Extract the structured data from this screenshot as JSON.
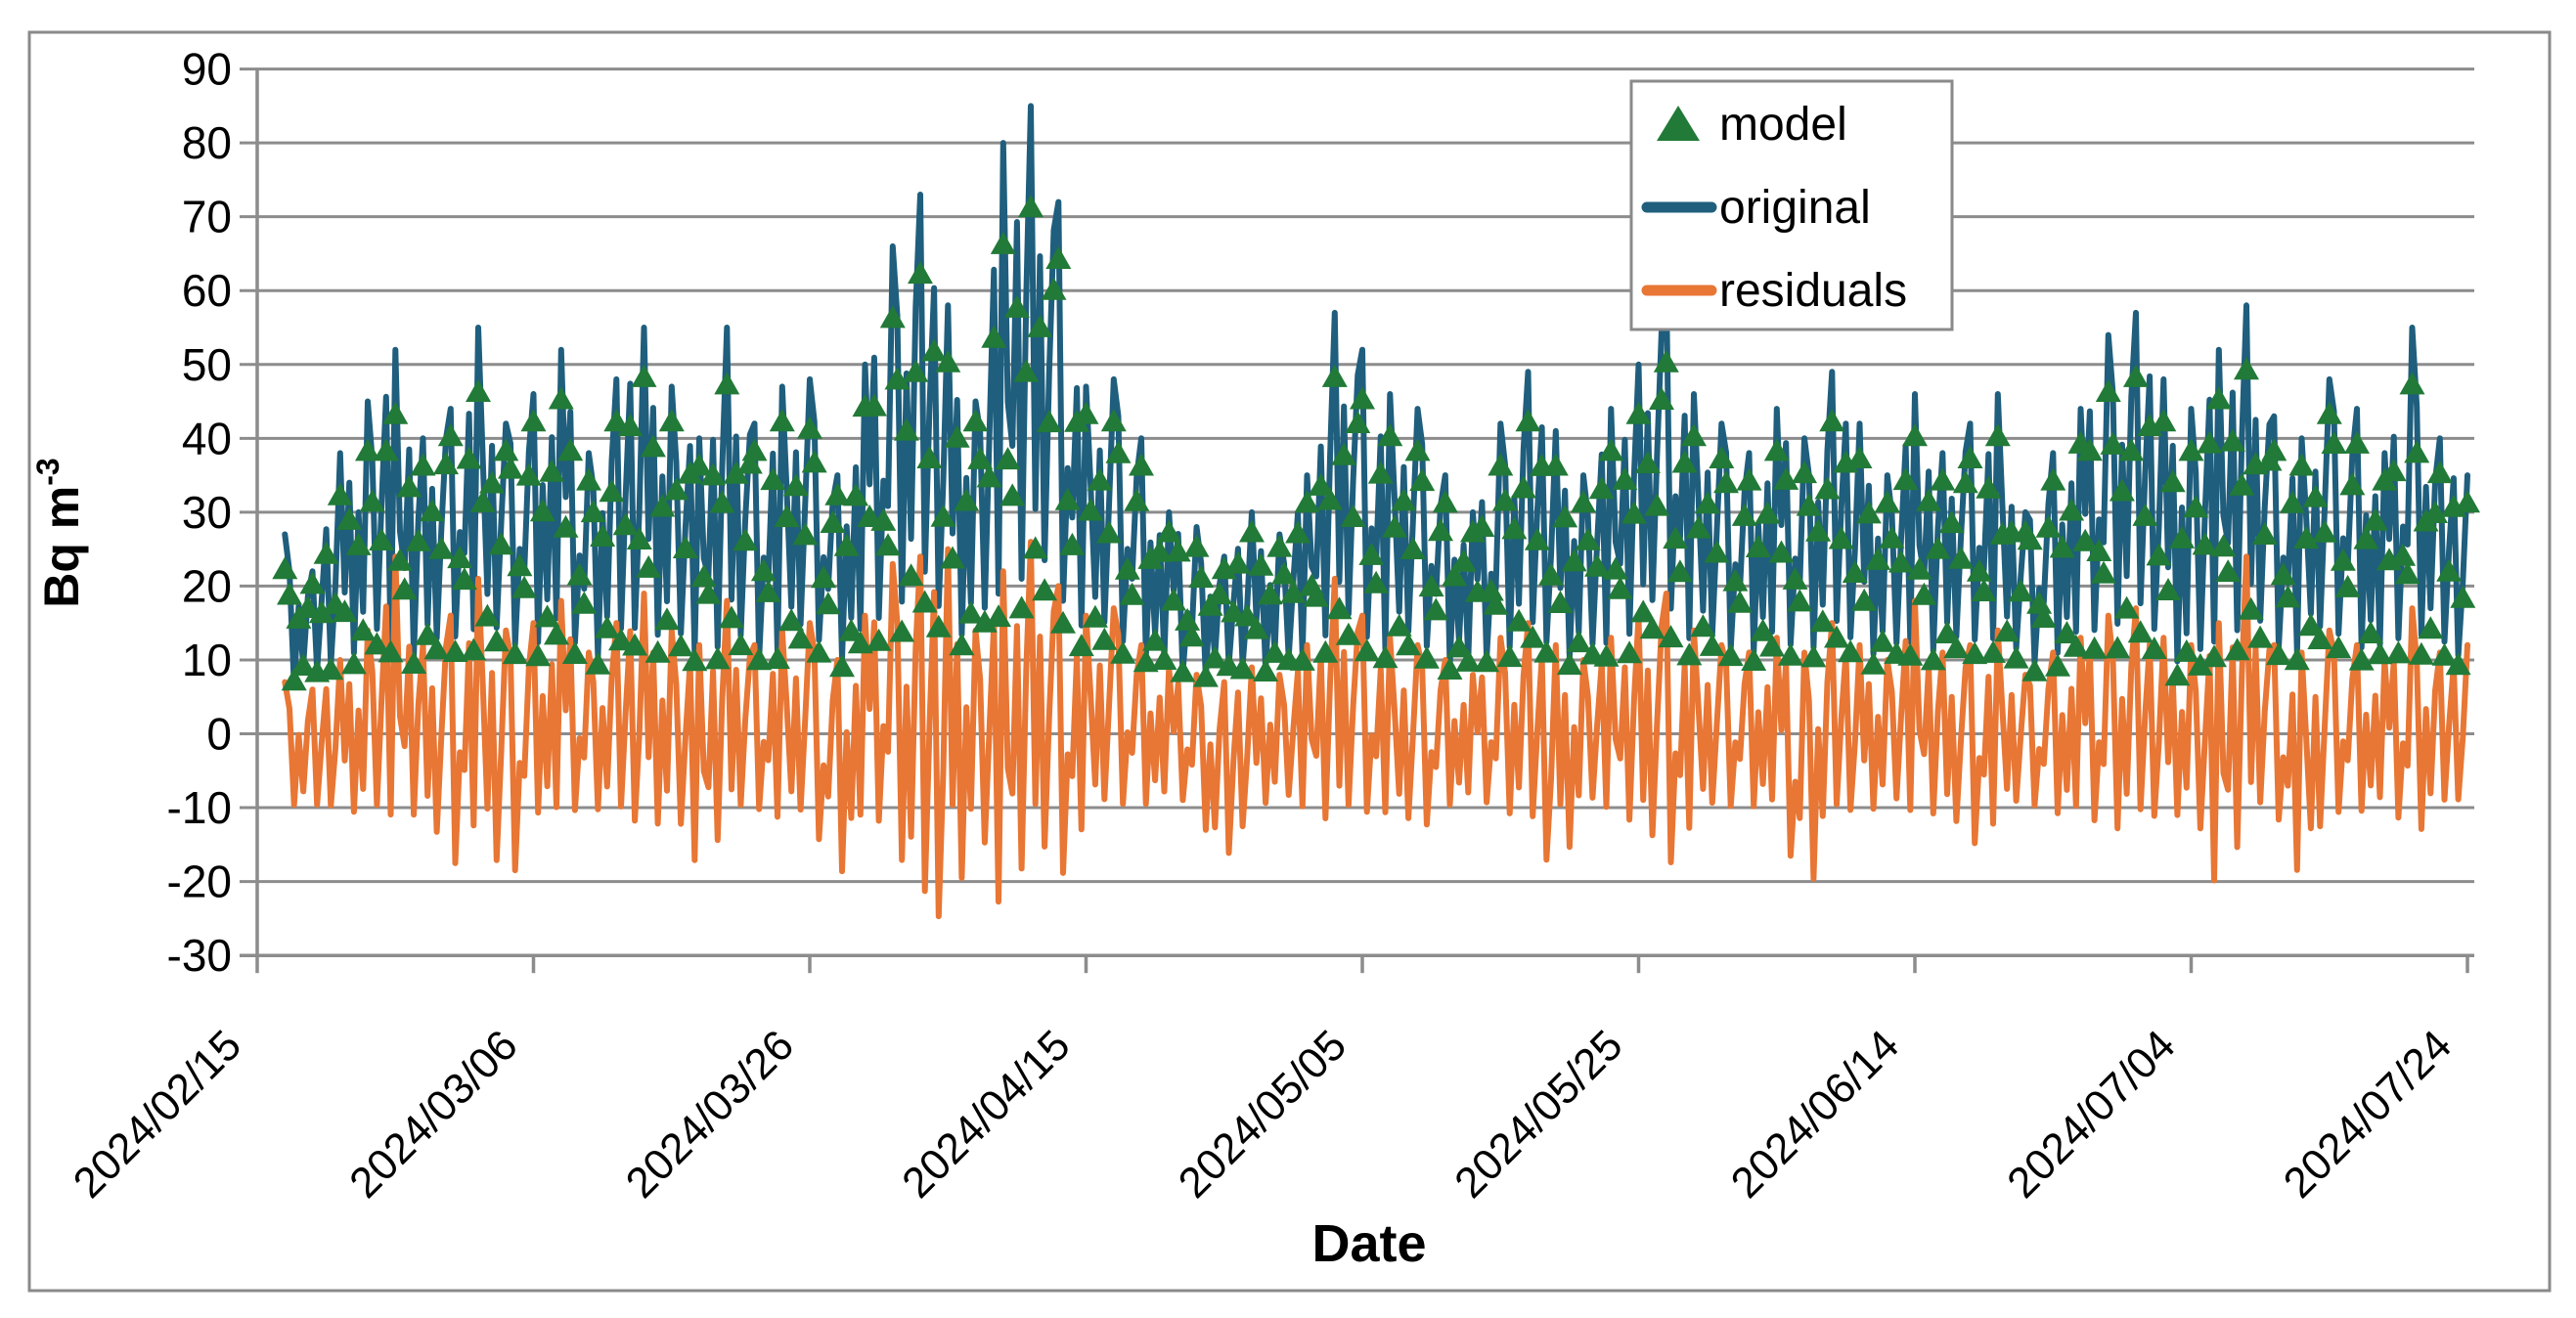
{
  "chart": {
    "title": "",
    "background": "#ffffff",
    "frame_color": "#8a8a8a",
    "gridline_color": "#8c8c8c",
    "axis_color": "#8c8c8c",
    "text_color": "#000000",
    "y_axis": {
      "title_main": "Bq m",
      "title_sup": "-3",
      "min": -30,
      "max": 90,
      "tick_step": 10,
      "tick_labels": [
        "90",
        "80",
        "70",
        "60",
        "50",
        "40",
        "30",
        "20",
        "10",
        "0",
        "-10",
        "-20",
        "-30"
      ]
    },
    "x_axis": {
      "title": "Date",
      "tick_labels": [
        "2024/02/15",
        "2024/03/06",
        "2024/03/26",
        "2024/04/15",
        "2024/05/05",
        "2024/05/25",
        "2024/06/14",
        "2024/07/04",
        "2024/07/24"
      ],
      "tick_interval_days": 20
    },
    "legend": {
      "position": "top-right-inside",
      "entries": [
        {
          "label": "model",
          "marker": "triangle",
          "color": "#217a37"
        },
        {
          "label": "original",
          "marker": "line",
          "color": "#1f5e7d"
        },
        {
          "label": "residuals",
          "marker": "line",
          "color": "#e87634"
        }
      ]
    }
  },
  "chart_data": {
    "type": "line",
    "title": "",
    "xlabel": "Date",
    "ylabel": "Bq m-3",
    "ylim": [
      -30,
      90
    ],
    "grid": "horizontal",
    "legend_position": "top-right inside plot",
    "x_tick_labels": [
      "2024/02/15",
      "2024/03/06",
      "2024/03/26",
      "2024/04/15",
      "2024/05/05",
      "2024/05/25",
      "2024/06/14",
      "2024/07/04",
      "2024/07/24"
    ],
    "x_day_of_first_tick": 0,
    "x_days_per_tick": 20,
    "sampling_note": "high-frequency data summarized as 2-day hi/lo envelopes; day 0 = 2024/02/15",
    "day_start": 2,
    "day_step": 2,
    "sub_pattern": [
      0.35,
      0.8,
      0.06,
      0.62,
      0.2,
      0.75,
      0.12,
      0.55,
      0.9,
      0.08,
      0.45
    ],
    "series": [
      {
        "name": "original",
        "style": "line",
        "color": "#1f5e7d",
        "hi": [
          27,
          22,
          38,
          45,
          52,
          40,
          44,
          55,
          42,
          46,
          52,
          38,
          48,
          55,
          47,
          40,
          55,
          42,
          47,
          48,
          35,
          50,
          66,
          73,
          58,
          45,
          80,
          85,
          72,
          47,
          48,
          40,
          30,
          28,
          24,
          30,
          27,
          35,
          57,
          52,
          46,
          44,
          35,
          30,
          42,
          49,
          41,
          35,
          44,
          50,
          61,
          46,
          42,
          38,
          44,
          40,
          49,
          42,
          35,
          46,
          38,
          42,
          46,
          30,
          38,
          44,
          54,
          57,
          48,
          44,
          52,
          58,
          43,
          40,
          48,
          44,
          38,
          55,
          40,
          35
        ],
        "lo": [
          5,
          6,
          8,
          10,
          9,
          8,
          10,
          12,
          9,
          10,
          11,
          8,
          9,
          12,
          10,
          8,
          10,
          7,
          9,
          11,
          8,
          10,
          14,
          16,
          12,
          10,
          15,
          18,
          14,
          12,
          10,
          9,
          7,
          6,
          7,
          8,
          7,
          9,
          12,
          10,
          9,
          10,
          8,
          7,
          9,
          11,
          9,
          8,
          10,
          12,
          14,
          10,
          9,
          9,
          10,
          9,
          11,
          10,
          8,
          10,
          9,
          10,
          11,
          7,
          9,
          10,
          12,
          13,
          10,
          5,
          10,
          12,
          9,
          9,
          11,
          10,
          8,
          12,
          9,
          8
        ]
      },
      {
        "name": "residuals",
        "style": "line",
        "color": "#e87634",
        "hi": [
          7,
          6,
          10,
          14,
          24,
          12,
          16,
          21,
          14,
          15,
          18,
          11,
          15,
          19,
          14,
          12,
          18,
          12,
          14,
          15,
          10,
          16,
          23,
          24,
          25,
          14,
          22,
          26,
          20,
          16,
          17,
          12,
          9,
          8,
          7,
          9,
          8,
          12,
          21,
          16,
          13,
          12,
          10,
          8,
          13,
          15,
          12,
          10,
          13,
          16,
          19,
          14,
          12,
          11,
          13,
          11,
          15,
          12,
          10,
          18,
          11,
          12,
          14,
          8,
          11,
          13,
          16,
          17,
          13,
          12,
          15,
          24,
          12,
          11,
          14,
          12,
          10,
          17,
          11,
          12
        ],
        "lo": [
          -10,
          -12,
          -11,
          -13,
          -14,
          -12,
          -22,
          -13,
          -26,
          -12,
          -14,
          -11,
          -13,
          -15,
          -13,
          -21,
          -14,
          -12,
          -13,
          -14,
          -22,
          -13,
          -16,
          -27,
          -30,
          -14,
          -29,
          -17,
          -24,
          -13,
          -12,
          -11,
          -10,
          -11,
          -21,
          -11,
          -10,
          -12,
          -14,
          -13,
          -12,
          -16,
          -11,
          -10,
          -12,
          -13,
          -23,
          -11,
          -12,
          -14,
          -22,
          -13,
          -12,
          -11,
          -12,
          -26,
          -13,
          -12,
          -11,
          -13,
          -12,
          -18,
          -13,
          -11,
          -12,
          -13,
          -15,
          -14,
          -13,
          -12,
          -25,
          -14,
          -12,
          -22,
          -13,
          -12,
          -11,
          -16,
          -12,
          -10
        ]
      },
      {
        "name": "model",
        "style": "triangle-markers",
        "color": "#217a37",
        "hi": [
          22,
          20,
          32,
          38,
          43,
          36,
          40,
          46,
          38,
          42,
          45,
          34,
          42,
          48,
          42,
          36,
          47,
          38,
          42,
          41,
          32,
          44,
          56,
          62,
          50,
          42,
          66,
          71,
          64,
          43,
          42,
          36,
          27,
          25,
          22,
          27,
          25,
          31,
          48,
          45,
          40,
          38,
          31,
          27,
          36,
          42,
          36,
          31,
          38,
          43,
          50,
          40,
          37,
          34,
          38,
          35,
          42,
          37,
          31,
          40,
          34,
          37,
          40,
          27,
          34,
          39,
          46,
          48,
          42,
          38,
          45,
          49,
          38,
          36,
          43,
          39,
          34,
          47,
          35,
          31
        ],
        "lo": [
          6,
          6,
          7,
          8,
          8,
          7,
          8,
          9,
          8,
          8,
          9,
          7,
          8,
          9,
          8,
          7,
          8,
          7,
          8,
          9,
          7,
          8,
          10,
          12,
          10,
          9,
          12,
          14,
          11,
          9,
          8,
          8,
          7,
          6,
          7,
          7,
          7,
          8,
          9,
          8,
          8,
          8,
          7,
          7,
          8,
          9,
          8,
          7,
          8,
          9,
          10,
          8,
          8,
          8,
          8,
          8,
          9,
          8,
          7,
          8,
          8,
          8,
          9,
          6,
          7,
          8,
          9,
          9,
          8,
          3,
          8,
          9,
          8,
          8,
          9,
          8,
          7,
          9,
          7,
          7
        ]
      }
    ]
  }
}
